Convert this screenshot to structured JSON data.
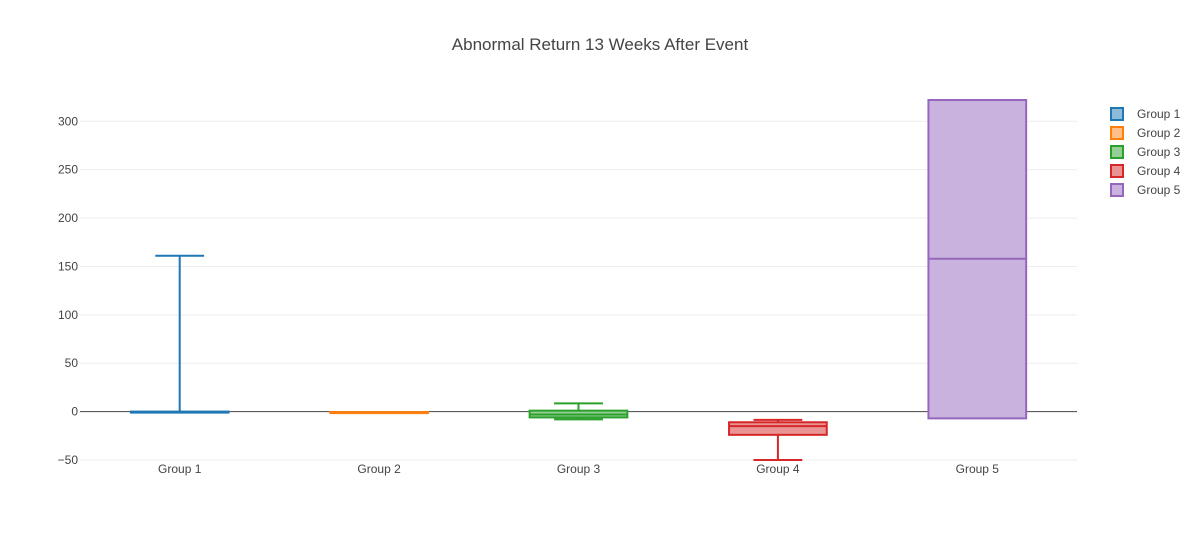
{
  "chart_data": {
    "type": "box",
    "title": "Abnormal Return 13 Weeks After Event",
    "xlabel": "",
    "ylabel": "",
    "ylim": [
      -50,
      322
    ],
    "y_ticks": [
      -50,
      0,
      50,
      100,
      150,
      200,
      250,
      300
    ],
    "y_tick_labels": [
      "−50",
      "0",
      "50",
      "100",
      "150",
      "200",
      "250",
      "300"
    ],
    "categories": [
      "Group 1",
      "Group 2",
      "Group 3",
      "Group 4",
      "Group 5"
    ],
    "grid": true,
    "zero_line": true,
    "legend_position": "top-right",
    "series": [
      {
        "name": "Group 1",
        "color": "#1f77b4",
        "fill": "#8fbbd9",
        "min": -0.5,
        "q1": -0.5,
        "median": -0.3,
        "q3": 0,
        "max": 161,
        "has_lower_whisker": false
      },
      {
        "name": "Group 2",
        "color": "#ff7f0e",
        "fill": "#ffbf86",
        "min": -1.5,
        "q1": -1.5,
        "median": -1,
        "q3": -0.5,
        "max": -0.5,
        "has_lower_whisker": false
      },
      {
        "name": "Group 3",
        "color": "#2ca02c",
        "fill": "#95cf95",
        "min": -8,
        "q1": -6,
        "median": -3,
        "q3": 1,
        "max": 8.5,
        "has_lower_whisker": true
      },
      {
        "name": "Group 4",
        "color": "#d62728",
        "fill": "#ea9393",
        "min": -50,
        "q1": -24,
        "median": -15,
        "q3": -11,
        "max": -8.5,
        "has_lower_whisker": true
      },
      {
        "name": "Group 5",
        "color": "#9467bd",
        "fill": "#c9b3de",
        "min": -7,
        "q1": -7,
        "median": 158,
        "q3": 322,
        "max": 322,
        "has_lower_whisker": false
      }
    ]
  }
}
